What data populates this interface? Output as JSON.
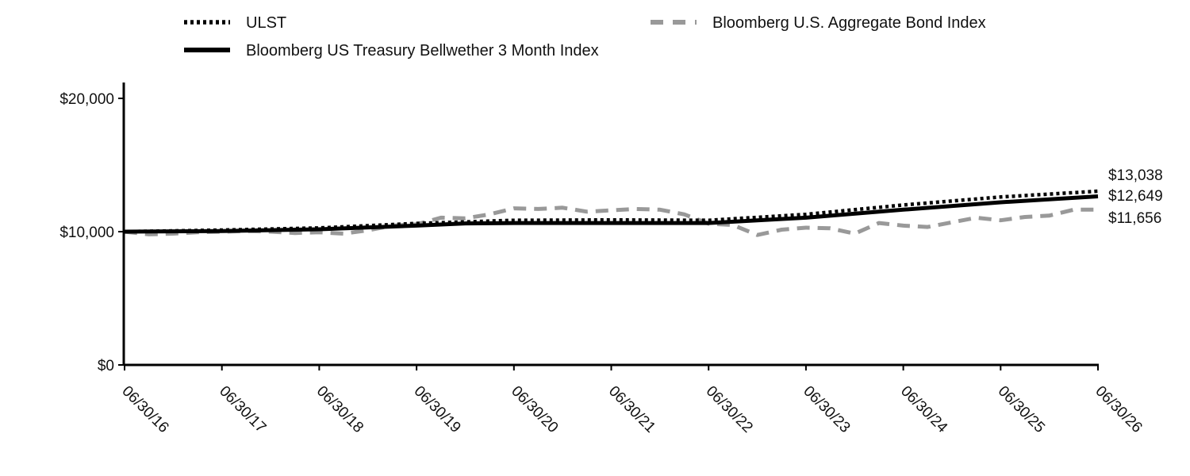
{
  "chart_data": {
    "type": "line",
    "title": "",
    "xlabel": "",
    "ylabel": "",
    "ylim": [
      0,
      20000
    ],
    "yticks": [
      {
        "value": 0,
        "label": "$0"
      },
      {
        "value": 10000,
        "label": "$10,000"
      },
      {
        "value": 20000,
        "label": "$20,000"
      }
    ],
    "x_tick_labels": [
      "06/30/16",
      "06/30/17",
      "06/30/18",
      "06/30/19",
      "06/30/20",
      "06/30/21",
      "06/30/22",
      "06/30/23",
      "06/30/24",
      "06/30/25",
      "06/30/26"
    ],
    "grid": false,
    "legend_position": "top",
    "series": [
      {
        "name": "ULST",
        "style": "dotted",
        "color": "#000000",
        "x": [
          0,
          1,
          2,
          3,
          4,
          5,
          6,
          7,
          8,
          9,
          10
        ],
        "values": [
          10000,
          10120,
          10280,
          10620,
          10850,
          10880,
          10850,
          11300,
          12000,
          12600,
          13038
        ],
        "end_label": "$13,038"
      },
      {
        "name": "Bloomberg US Treasury Bellwether 3 Month Index",
        "style": "solid",
        "color": "#000000",
        "x": [
          0,
          1,
          2,
          3,
          3.5,
          4,
          5,
          6,
          7,
          8,
          9,
          10
        ],
        "values": [
          10000,
          10050,
          10180,
          10450,
          10620,
          10650,
          10650,
          10650,
          11050,
          11650,
          12200,
          12649
        ],
        "end_label": "$12,649"
      },
      {
        "name": "Bloomberg U.S. Aggregate Bond Index",
        "style": "dashed",
        "color": "#999999",
        "x": [
          0,
          0.25,
          0.5,
          0.75,
          1,
          1.25,
          1.5,
          1.75,
          2,
          2.25,
          2.5,
          2.75,
          3,
          3.25,
          3.5,
          3.75,
          4,
          4.25,
          4.5,
          4.75,
          5,
          5.25,
          5.5,
          5.75,
          6,
          6.25,
          6.5,
          6.75,
          7,
          7.25,
          7.5,
          7.75,
          8,
          8.25,
          8.5,
          8.75,
          9,
          9.25,
          9.5,
          9.75,
          10
        ],
        "values": [
          10000,
          9800,
          9850,
          9950,
          10000,
          10050,
          10000,
          9900,
          9950,
          9850,
          10100,
          10450,
          10550,
          11050,
          11000,
          11300,
          11750,
          11700,
          11800,
          11500,
          11600,
          11700,
          11650,
          11300,
          10600,
          10500,
          9750,
          10150,
          10300,
          10250,
          9850,
          10650,
          10450,
          10350,
          10700,
          11050,
          10850,
          11100,
          11200,
          11650,
          11656
        ],
        "end_label": "$11,656"
      }
    ]
  }
}
